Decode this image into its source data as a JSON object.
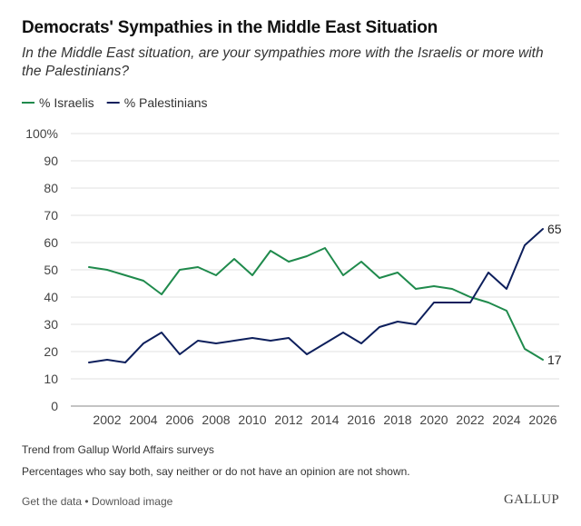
{
  "header": {
    "title": "Democrats' Sympathies in the Middle East Situation",
    "subtitle": "In the Middle East situation, are your sympathies more with the Israelis or more with the Palestinians?"
  },
  "chart_data": {
    "type": "line",
    "title": "Democrats' Sympathies in the Middle East Situation",
    "xlabel": "",
    "ylabel": "",
    "x": [
      2001,
      2002,
      2003,
      2004,
      2005,
      2006,
      2007,
      2008,
      2009,
      2010,
      2011,
      2012,
      2013,
      2014,
      2015,
      2016,
      2017,
      2018,
      2019,
      2020,
      2021,
      2022,
      2023,
      2024,
      2025,
      2026
    ],
    "xticks": [
      "2002",
      "2004",
      "2006",
      "2008",
      "2010",
      "2012",
      "2014",
      "2016",
      "2018",
      "2020",
      "2022",
      "2024",
      "2026"
    ],
    "xlim": [
      2000,
      2026.9
    ],
    "ylim": [
      0,
      100
    ],
    "yticks": [
      "0",
      "10",
      "20",
      "30",
      "40",
      "50",
      "60",
      "70",
      "80",
      "90",
      "100%"
    ],
    "legend_position": "top-left",
    "grid": true,
    "series": [
      {
        "name": "% Israelis",
        "color": "#1f8a4c",
        "values": [
          51,
          50,
          48,
          46,
          41,
          50,
          51,
          48,
          54,
          48,
          57,
          53,
          55,
          58,
          48,
          53,
          47,
          49,
          43,
          44,
          43,
          40,
          38,
          35,
          21,
          17
        ],
        "end_label": "17"
      },
      {
        "name": "% Palestinians",
        "color": "#0d1f5c",
        "values": [
          16,
          17,
          16,
          23,
          27,
          19,
          24,
          23,
          24,
          25,
          24,
          25,
          19,
          23,
          27,
          23,
          29,
          31,
          30,
          38,
          38,
          38,
          49,
          43,
          59,
          65
        ],
        "end_label": "65"
      }
    ]
  },
  "notes": {
    "source": "Trend from Gallup World Affairs surveys",
    "caveat": "Percentages who say both, say neither or do not have an opinion are not shown."
  },
  "footer": {
    "get_data": "Get the data",
    "separator": "•",
    "download": "Download image",
    "brand": "GALLUP"
  }
}
